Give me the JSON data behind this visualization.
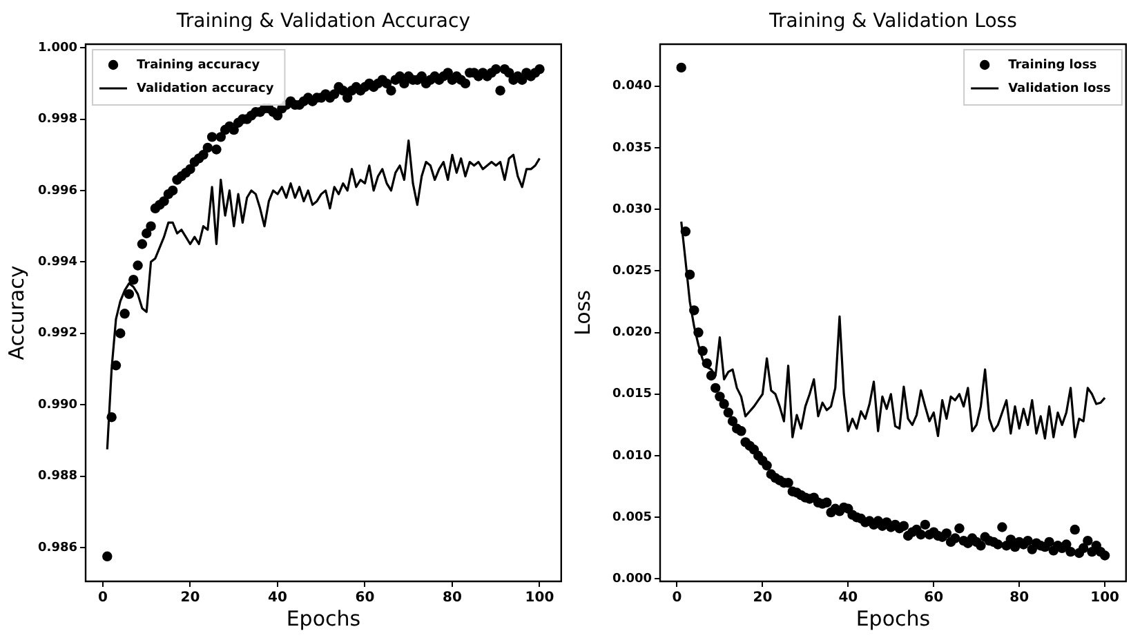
{
  "chart_data": [
    {
      "type": "line",
      "title": "Training & Validation Accuracy",
      "xlabel": "Epochs",
      "ylabel": "Accuracy",
      "legend": "top left",
      "x": [
        1,
        2,
        3,
        4,
        5,
        6,
        7,
        8,
        9,
        10,
        11,
        12,
        13,
        14,
        15,
        16,
        17,
        18,
        19,
        20,
        21,
        22,
        23,
        24,
        25,
        26,
        27,
        28,
        29,
        30,
        31,
        32,
        33,
        34,
        35,
        36,
        37,
        38,
        39,
        40,
        41,
        42,
        43,
        44,
        45,
        46,
        47,
        48,
        49,
        50,
        51,
        52,
        53,
        54,
        55,
        56,
        57,
        58,
        59,
        60,
        61,
        62,
        63,
        64,
        65,
        66,
        67,
        68,
        69,
        70,
        71,
        72,
        73,
        74,
        75,
        76,
        77,
        78,
        79,
        80,
        81,
        82,
        83,
        84,
        85,
        86,
        87,
        88,
        89,
        90,
        91,
        92,
        93,
        94,
        95,
        96,
        97,
        98,
        99,
        100
      ],
      "xlim": [
        -3.95,
        104.95
      ],
      "xticks": [
        0,
        20,
        40,
        60,
        80,
        100
      ],
      "ylim": [
        0.98505,
        1.0001
      ],
      "yticks": [
        {
          "value": 0.986,
          "label": "0.986"
        },
        {
          "value": 0.988,
          "label": "0.988"
        },
        {
          "value": 0.99,
          "label": "0.990"
        },
        {
          "value": 0.992,
          "label": "0.992"
        },
        {
          "value": 0.994,
          "label": "0.994"
        },
        {
          "value": 0.996,
          "label": "0.996"
        },
        {
          "value": 0.998,
          "label": "0.998"
        },
        {
          "value": 1,
          "label": "1.000"
        }
      ],
      "series": [
        {
          "name": "Training accuracy",
          "type": "scatter",
          "color": "#000000",
          "values": [
            0.98575,
            0.98965,
            0.9911,
            0.992,
            0.99255,
            0.9931,
            0.9935,
            0.9939,
            0.9945,
            0.9948,
            0.995,
            0.9955,
            0.9956,
            0.9957,
            0.9959,
            0.996,
            0.9963,
            0.9964,
            0.9965,
            0.9966,
            0.9968,
            0.9969,
            0.997,
            0.9972,
            0.9975,
            0.99715,
            0.9975,
            0.9977,
            0.9978,
            0.9977,
            0.9979,
            0.998,
            0.998,
            0.9981,
            0.9982,
            0.9982,
            0.9983,
            0.9983,
            0.9982,
            0.9981,
            0.9983,
            0.9984,
            0.9985,
            0.9984,
            0.9984,
            0.9985,
            0.9986,
            0.9985,
            0.9986,
            0.9986,
            0.9987,
            0.9986,
            0.9987,
            0.9989,
            0.9988,
            0.9986,
            0.9988,
            0.9989,
            0.9988,
            0.9989,
            0.999,
            0.9989,
            0.999,
            0.9991,
            0.999,
            0.9988,
            0.9991,
            0.9992,
            0.999,
            0.9992,
            0.9991,
            0.9991,
            0.9992,
            0.999,
            0.9991,
            0.9992,
            0.9991,
            0.9992,
            0.9993,
            0.9991,
            0.9992,
            0.9991,
            0.999,
            0.9993,
            0.9993,
            0.9992,
            0.9993,
            0.9992,
            0.9993,
            0.9994,
            0.9988,
            0.9994,
            0.9993,
            0.9991,
            0.9992,
            0.9991,
            0.9993,
            0.9992,
            0.9993,
            0.9994
          ]
        },
        {
          "name": "Validation accuracy",
          "type": "line",
          "color": "#000000",
          "values": [
            0.98875,
            0.991,
            0.9924,
            0.9929,
            0.9932,
            0.9934,
            0.9933,
            0.9931,
            0.9927,
            0.9926,
            0.994,
            0.9941,
            0.9944,
            0.9947,
            0.9951,
            0.9951,
            0.9948,
            0.9949,
            0.9947,
            0.9945,
            0.9947,
            0.9945,
            0.995,
            0.9949,
            0.9961,
            0.9945,
            0.9963,
            0.9953,
            0.996,
            0.995,
            0.9959,
            0.9951,
            0.9958,
            0.996,
            0.9959,
            0.9955,
            0.995,
            0.9957,
            0.996,
            0.9959,
            0.9961,
            0.9958,
            0.9962,
            0.9958,
            0.9961,
            0.9957,
            0.996,
            0.9956,
            0.9957,
            0.9959,
            0.996,
            0.9955,
            0.9961,
            0.9959,
            0.9962,
            0.996,
            0.9966,
            0.9961,
            0.9963,
            0.9962,
            0.9967,
            0.996,
            0.9964,
            0.9966,
            0.9962,
            0.996,
            0.9965,
            0.9967,
            0.9963,
            0.9974,
            0.9962,
            0.9956,
            0.9964,
            0.9968,
            0.9967,
            0.9963,
            0.9966,
            0.9968,
            0.9963,
            0.997,
            0.9965,
            0.9969,
            0.9964,
            0.9968,
            0.9967,
            0.9968,
            0.9966,
            0.9967,
            0.9968,
            0.9967,
            0.9968,
            0.9963,
            0.9969,
            0.997,
            0.9964,
            0.9961,
            0.9966,
            0.9966,
            0.9967,
            0.9969
          ]
        }
      ]
    },
    {
      "type": "line",
      "title": "Training & Validation Loss",
      "xlabel": "Epochs",
      "ylabel": "Loss",
      "legend": "top right",
      "x": [
        1,
        2,
        3,
        4,
        5,
        6,
        7,
        8,
        9,
        10,
        11,
        12,
        13,
        14,
        15,
        16,
        17,
        18,
        19,
        20,
        21,
        22,
        23,
        24,
        25,
        26,
        27,
        28,
        29,
        30,
        31,
        32,
        33,
        34,
        35,
        36,
        37,
        38,
        39,
        40,
        41,
        42,
        43,
        44,
        45,
        46,
        47,
        48,
        49,
        50,
        51,
        52,
        53,
        54,
        55,
        56,
        57,
        58,
        59,
        60,
        61,
        62,
        63,
        64,
        65,
        66,
        67,
        68,
        69,
        70,
        71,
        72,
        73,
        74,
        75,
        76,
        77,
        78,
        79,
        80,
        81,
        82,
        83,
        84,
        85,
        86,
        87,
        88,
        89,
        90,
        91,
        92,
        93,
        94,
        95,
        96,
        97,
        98,
        99,
        100
      ],
      "xlim": [
        -3.95,
        104.95
      ],
      "xticks": [
        0,
        20,
        40,
        60,
        80,
        100
      ],
      "ylim": [
        -0.0002,
        0.0434
      ],
      "yticks": [
        {
          "value": 0,
          "label": "0.000"
        },
        {
          "value": 0.005,
          "label": "0.005"
        },
        {
          "value": 0.01,
          "label": "0.010"
        },
        {
          "value": 0.015,
          "label": "0.015"
        },
        {
          "value": 0.02,
          "label": "0.020"
        },
        {
          "value": 0.025,
          "label": "0.025"
        },
        {
          "value": 0.03,
          "label": "0.030"
        },
        {
          "value": 0.035,
          "label": "0.035"
        },
        {
          "value": 0.04,
          "label": "0.040"
        }
      ],
      "series": [
        {
          "name": "Training loss",
          "type": "scatter",
          "color": "#000000",
          "values": [
            0.0415,
            0.0282,
            0.0247,
            0.0218,
            0.02,
            0.0185,
            0.0175,
            0.0165,
            0.0155,
            0.0148,
            0.0142,
            0.0135,
            0.0128,
            0.0122,
            0.012,
            0.0111,
            0.0108,
            0.0105,
            0.01,
            0.0096,
            0.0092,
            0.0085,
            0.0082,
            0.008,
            0.0078,
            0.0078,
            0.0071,
            0.007,
            0.0068,
            0.0066,
            0.0065,
            0.0066,
            0.0062,
            0.0061,
            0.0062,
            0.0054,
            0.0057,
            0.0055,
            0.0058,
            0.0057,
            0.0052,
            0.005,
            0.0049,
            0.0046,
            0.0047,
            0.0044,
            0.0047,
            0.0043,
            0.0046,
            0.0042,
            0.0044,
            0.0041,
            0.0043,
            0.0035,
            0.0038,
            0.004,
            0.0036,
            0.0044,
            0.0036,
            0.0038,
            0.0035,
            0.0034,
            0.0037,
            0.003,
            0.0033,
            0.0041,
            0.0031,
            0.0029,
            0.0033,
            0.003,
            0.0027,
            0.0034,
            0.0031,
            0.003,
            0.0028,
            0.0042,
            0.0027,
            0.0032,
            0.0026,
            0.003,
            0.0028,
            0.0031,
            0.0024,
            0.0029,
            0.0027,
            0.0026,
            0.003,
            0.0023,
            0.0027,
            0.0025,
            0.0028,
            0.0022,
            0.004,
            0.0021,
            0.0025,
            0.0031,
            0.0022,
            0.0027,
            0.0022,
            0.0019
          ]
        },
        {
          "name": "Validation loss",
          "type": "line",
          "color": "#000000",
          "values": [
            0.029,
            0.0258,
            0.0225,
            0.0205,
            0.019,
            0.0178,
            0.0172,
            0.017,
            0.0165,
            0.0196,
            0.0162,
            0.0168,
            0.017,
            0.0155,
            0.0148,
            0.0132,
            0.0136,
            0.014,
            0.0145,
            0.015,
            0.0179,
            0.0153,
            0.015,
            0.014,
            0.0128,
            0.0173,
            0.0115,
            0.0133,
            0.0122,
            0.014,
            0.015,
            0.0162,
            0.0132,
            0.0143,
            0.0137,
            0.014,
            0.0155,
            0.0213,
            0.015,
            0.012,
            0.013,
            0.0122,
            0.0136,
            0.013,
            0.0142,
            0.016,
            0.012,
            0.0148,
            0.0138,
            0.015,
            0.0124,
            0.0122,
            0.0156,
            0.013,
            0.0125,
            0.0133,
            0.0153,
            0.014,
            0.0128,
            0.0135,
            0.0116,
            0.0145,
            0.013,
            0.0148,
            0.0145,
            0.015,
            0.014,
            0.0155,
            0.012,
            0.0125,
            0.014,
            0.017,
            0.013,
            0.012,
            0.0125,
            0.0135,
            0.0145,
            0.0118,
            0.014,
            0.0122,
            0.0138,
            0.0125,
            0.0145,
            0.0118,
            0.0132,
            0.0114,
            0.014,
            0.0115,
            0.0135,
            0.0125,
            0.0135,
            0.0155,
            0.0115,
            0.013,
            0.0128,
            0.0155,
            0.015,
            0.0142,
            0.0143,
            0.0147
          ]
        }
      ]
    }
  ]
}
